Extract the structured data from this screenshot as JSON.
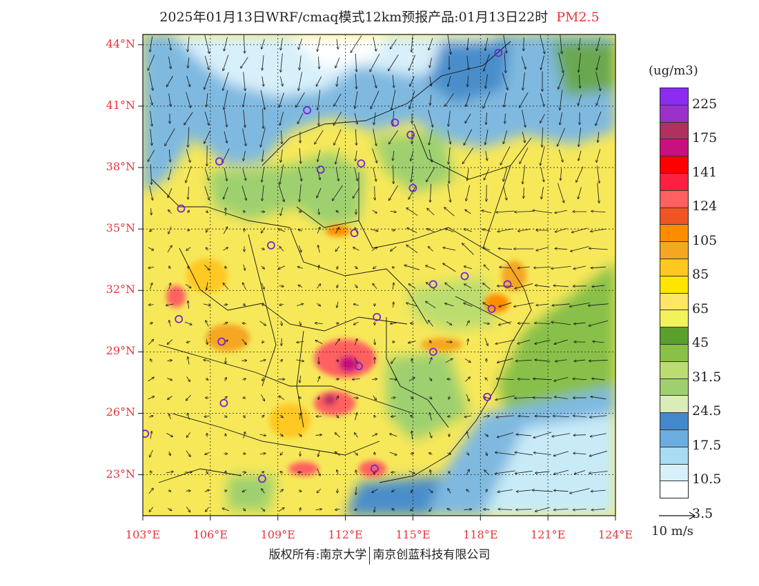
{
  "title": {
    "main": "2025年01月13日WRF/cmaq模式12km预报产品:01月13日22时",
    "pollutant": "PM2.5"
  },
  "map": {
    "lat_labels": [
      "44°N",
      "41°N",
      "38°N",
      "35°N",
      "32°N",
      "29°N",
      "26°N",
      "23°N"
    ],
    "lon_labels": [
      "103°E",
      "106°E",
      "109°E",
      "112°E",
      "115°E",
      "118°E",
      "121°E",
      "124°E"
    ],
    "lat_values": [
      44,
      41,
      38,
      35,
      32,
      29,
      26,
      23
    ],
    "lon_values": [
      103,
      106,
      109,
      112,
      115,
      118,
      121,
      124
    ],
    "lat_range": [
      21,
      44.5
    ],
    "lon_range": [
      103,
      124
    ],
    "cities": [
      {
        "lon": 118.8,
        "lat": 43.6
      },
      {
        "lon": 110.3,
        "lat": 40.8
      },
      {
        "lon": 114.2,
        "lat": 40.2
      },
      {
        "lon": 114.9,
        "lat": 39.6
      },
      {
        "lon": 106.4,
        "lat": 38.3
      },
      {
        "lon": 110.9,
        "lat": 37.9
      },
      {
        "lon": 112.7,
        "lat": 38.2
      },
      {
        "lon": 115.0,
        "lat": 37.0
      },
      {
        "lon": 104.7,
        "lat": 36.0
      },
      {
        "lon": 112.4,
        "lat": 34.8
      },
      {
        "lon": 108.7,
        "lat": 34.2
      },
      {
        "lon": 115.9,
        "lat": 32.3
      },
      {
        "lon": 117.3,
        "lat": 32.7
      },
      {
        "lon": 119.2,
        "lat": 32.3
      },
      {
        "lon": 118.5,
        "lat": 31.1
      },
      {
        "lon": 104.6,
        "lat": 30.6
      },
      {
        "lon": 113.4,
        "lat": 30.7
      },
      {
        "lon": 106.5,
        "lat": 29.5
      },
      {
        "lon": 112.6,
        "lat": 28.3
      },
      {
        "lon": 115.9,
        "lat": 29.0
      },
      {
        "lon": 106.6,
        "lat": 26.5
      },
      {
        "lon": 118.3,
        "lat": 26.8
      },
      {
        "lon": 103.1,
        "lat": 25.0
      },
      {
        "lon": 108.3,
        "lat": 22.8
      },
      {
        "lon": 113.3,
        "lat": 23.3
      }
    ]
  },
  "legend": {
    "unit": "(ug/m3)",
    "colors": [
      "#8b2cf0",
      "#9b31c8",
      "#b03060",
      "#c8107e",
      "#ff0000",
      "#ff1f40",
      "#ff6060",
      "#ee5522",
      "#ff8c00",
      "#f5a623",
      "#ffc820",
      "#ffe500",
      "#ffe566",
      "#f2f25a",
      "#5aa02c",
      "#88c048",
      "#bbdd70",
      "#9ed070",
      "#d8edb8",
      "#4488cc",
      "#6aadde",
      "#a8dcf2",
      "#d8f0fa",
      "#ffffff"
    ],
    "labels": [
      "225",
      "175",
      "141",
      "124",
      "105",
      "85",
      "65",
      "45",
      "31.5",
      "24.5",
      "17.5",
      "10.5",
      "3.5"
    ]
  },
  "wind_key": {
    "label": "10 m/s"
  },
  "copyright": {
    "left": "版权所有:南京大学",
    "right": "南京创蓝科技有限公司"
  }
}
